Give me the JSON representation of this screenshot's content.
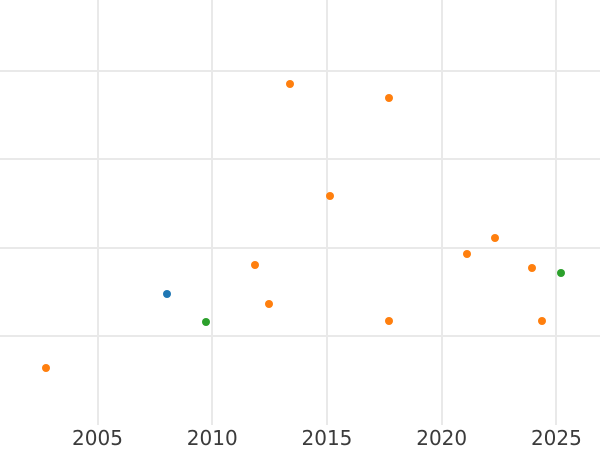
{
  "chart_data": {
    "type": "scatter",
    "title": "",
    "subtitle": "",
    "xlabel": "",
    "ylabel": "",
    "grid": true,
    "legend_position": "none",
    "xlim": [
      2000.75,
      2026.9
    ],
    "ylim": [
      0,
      4.8
    ],
    "x_ticks": [
      2005,
      2010,
      2015,
      2020,
      2025
    ],
    "x_tick_labels": [
      "2005",
      "2010",
      "2015",
      "2020",
      "2025"
    ],
    "y_gridlines": [
      1,
      2,
      3,
      4
    ],
    "marker_diameter_px": 8,
    "series": [
      {
        "name": "orange-series",
        "color": "#ff7f0e",
        "points": [
          [
            2002.76,
            0.64
          ],
          [
            2011.87,
            1.81
          ],
          [
            2012.48,
            1.37
          ],
          [
            2013.38,
            3.85
          ],
          [
            2015.14,
            2.59
          ],
          [
            2017.7,
            3.69
          ],
          [
            2017.72,
            1.17
          ],
          [
            2021.12,
            1.93
          ],
          [
            2022.33,
            2.11
          ],
          [
            2023.95,
            1.77
          ],
          [
            2024.36,
            1.17
          ]
        ]
      },
      {
        "name": "blue-series",
        "color": "#1f77b4",
        "points": [
          [
            2008.05,
            1.48
          ]
        ]
      },
      {
        "name": "green-series",
        "color": "#2ca02c",
        "points": [
          [
            2009.74,
            1.16
          ],
          [
            2025.2,
            1.72
          ]
        ]
      }
    ]
  },
  "styles": {
    "background": "#ffffff",
    "grid_color": "#e9e9e9",
    "tick_label_color": "#3b3b3b"
  }
}
